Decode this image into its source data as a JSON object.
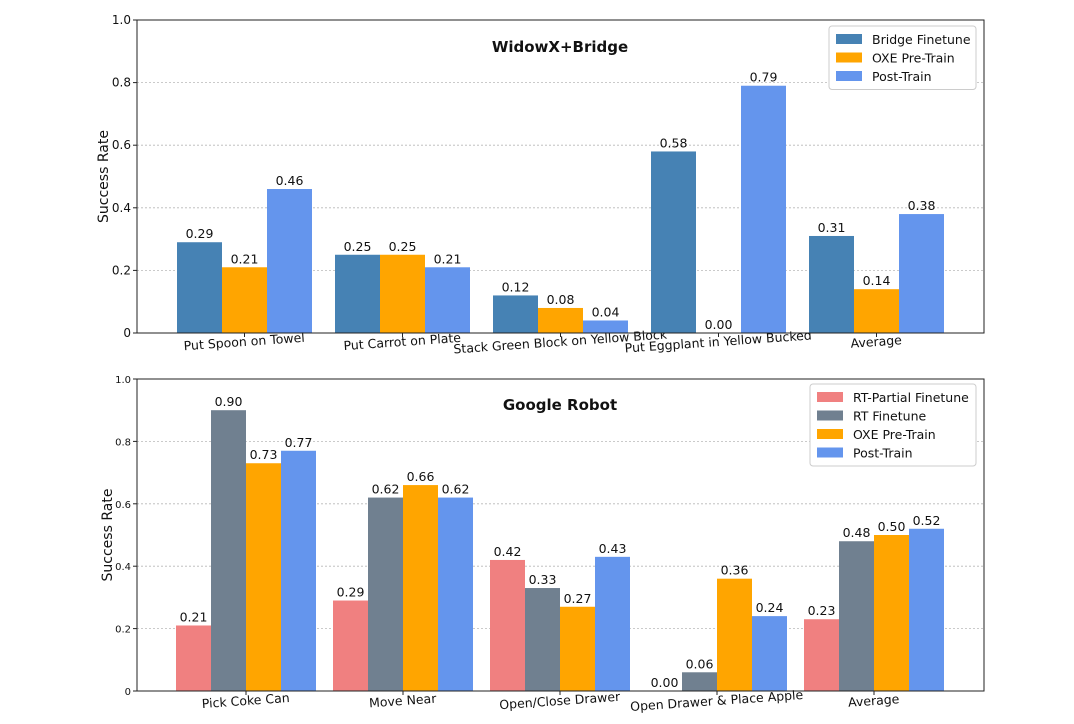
{
  "chart_data": [
    {
      "type": "bar",
      "title": "WidowX+Bridge",
      "xlabel": "",
      "ylabel": "Success Rate",
      "ylim": [
        0,
        1.0
      ],
      "yticks": [
        "0",
        "0.2",
        "0.4",
        "0.6",
        "0.8",
        "1.0"
      ],
      "ytick_values": [
        0,
        0.2,
        0.4,
        0.6,
        0.8,
        1.0
      ],
      "grid": true,
      "legend_position": "top-right",
      "categories": [
        "Put Spoon on Towel",
        "Put Carrot on Plate",
        "Stack Green Block on Yellow Block",
        "Put Eggplant in Yellow Bucked",
        "Average"
      ],
      "series": [
        {
          "name": "Bridge Finetune",
          "color": "#4682b4",
          "values": [
            0.29,
            0.25,
            0.12,
            0.58,
            0.31
          ],
          "labels": [
            "0.29",
            "0.25",
            "0.12",
            "0.58",
            "0.31"
          ]
        },
        {
          "name": "OXE Pre-Train",
          "color": "#ffa500",
          "values": [
            0.21,
            0.25,
            0.08,
            0.0,
            0.14
          ],
          "labels": [
            "0.21",
            "0.25",
            "0.08",
            "0.00",
            "0.14"
          ]
        },
        {
          "name": "Post-Train",
          "color": "#6495ed",
          "values": [
            0.46,
            0.21,
            0.04,
            0.79,
            0.38
          ],
          "labels": [
            "0.46",
            "0.21",
            "0.04",
            "0.79",
            "0.38"
          ]
        }
      ]
    },
    {
      "type": "bar",
      "title": "Google Robot",
      "xlabel": "",
      "ylabel": "Success Rate",
      "ylim": [
        0,
        1.0
      ],
      "yticks": [
        "0",
        "0.2",
        "0.4",
        "0.6",
        "0.8",
        "1.0"
      ],
      "ytick_values": [
        0,
        0.2,
        0.4,
        0.6,
        0.8,
        1.0
      ],
      "grid": true,
      "legend_position": "top-right",
      "categories": [
        "Pick Coke Can",
        "Move Near",
        "Open/Close Drawer",
        "Open Drawer & Place Apple",
        "Average"
      ],
      "series": [
        {
          "name": "RT-Partial Finetune",
          "color": "#f08080",
          "values": [
            0.21,
            0.29,
            0.42,
            0.0,
            0.23
          ],
          "labels": [
            "0.21",
            "0.29",
            "0.42",
            "0.00",
            "0.23"
          ]
        },
        {
          "name": "RT Finetune",
          "color": "#708090",
          "values": [
            0.9,
            0.62,
            0.33,
            0.06,
            0.48
          ],
          "labels": [
            "0.90",
            "0.62",
            "0.33",
            "0.06",
            "0.48"
          ]
        },
        {
          "name": "OXE Pre-Train",
          "color": "#ffa500",
          "values": [
            0.73,
            0.66,
            0.27,
            0.36,
            0.5
          ],
          "labels": [
            "0.73",
            "0.66",
            "0.27",
            "0.36",
            "0.50"
          ]
        },
        {
          "name": "Post-Train",
          "color": "#6495ed",
          "values": [
            0.77,
            0.62,
            0.43,
            0.24,
            0.52
          ],
          "labels": [
            "0.77",
            "0.62",
            "0.43",
            "0.24",
            "0.52"
          ]
        }
      ]
    }
  ]
}
